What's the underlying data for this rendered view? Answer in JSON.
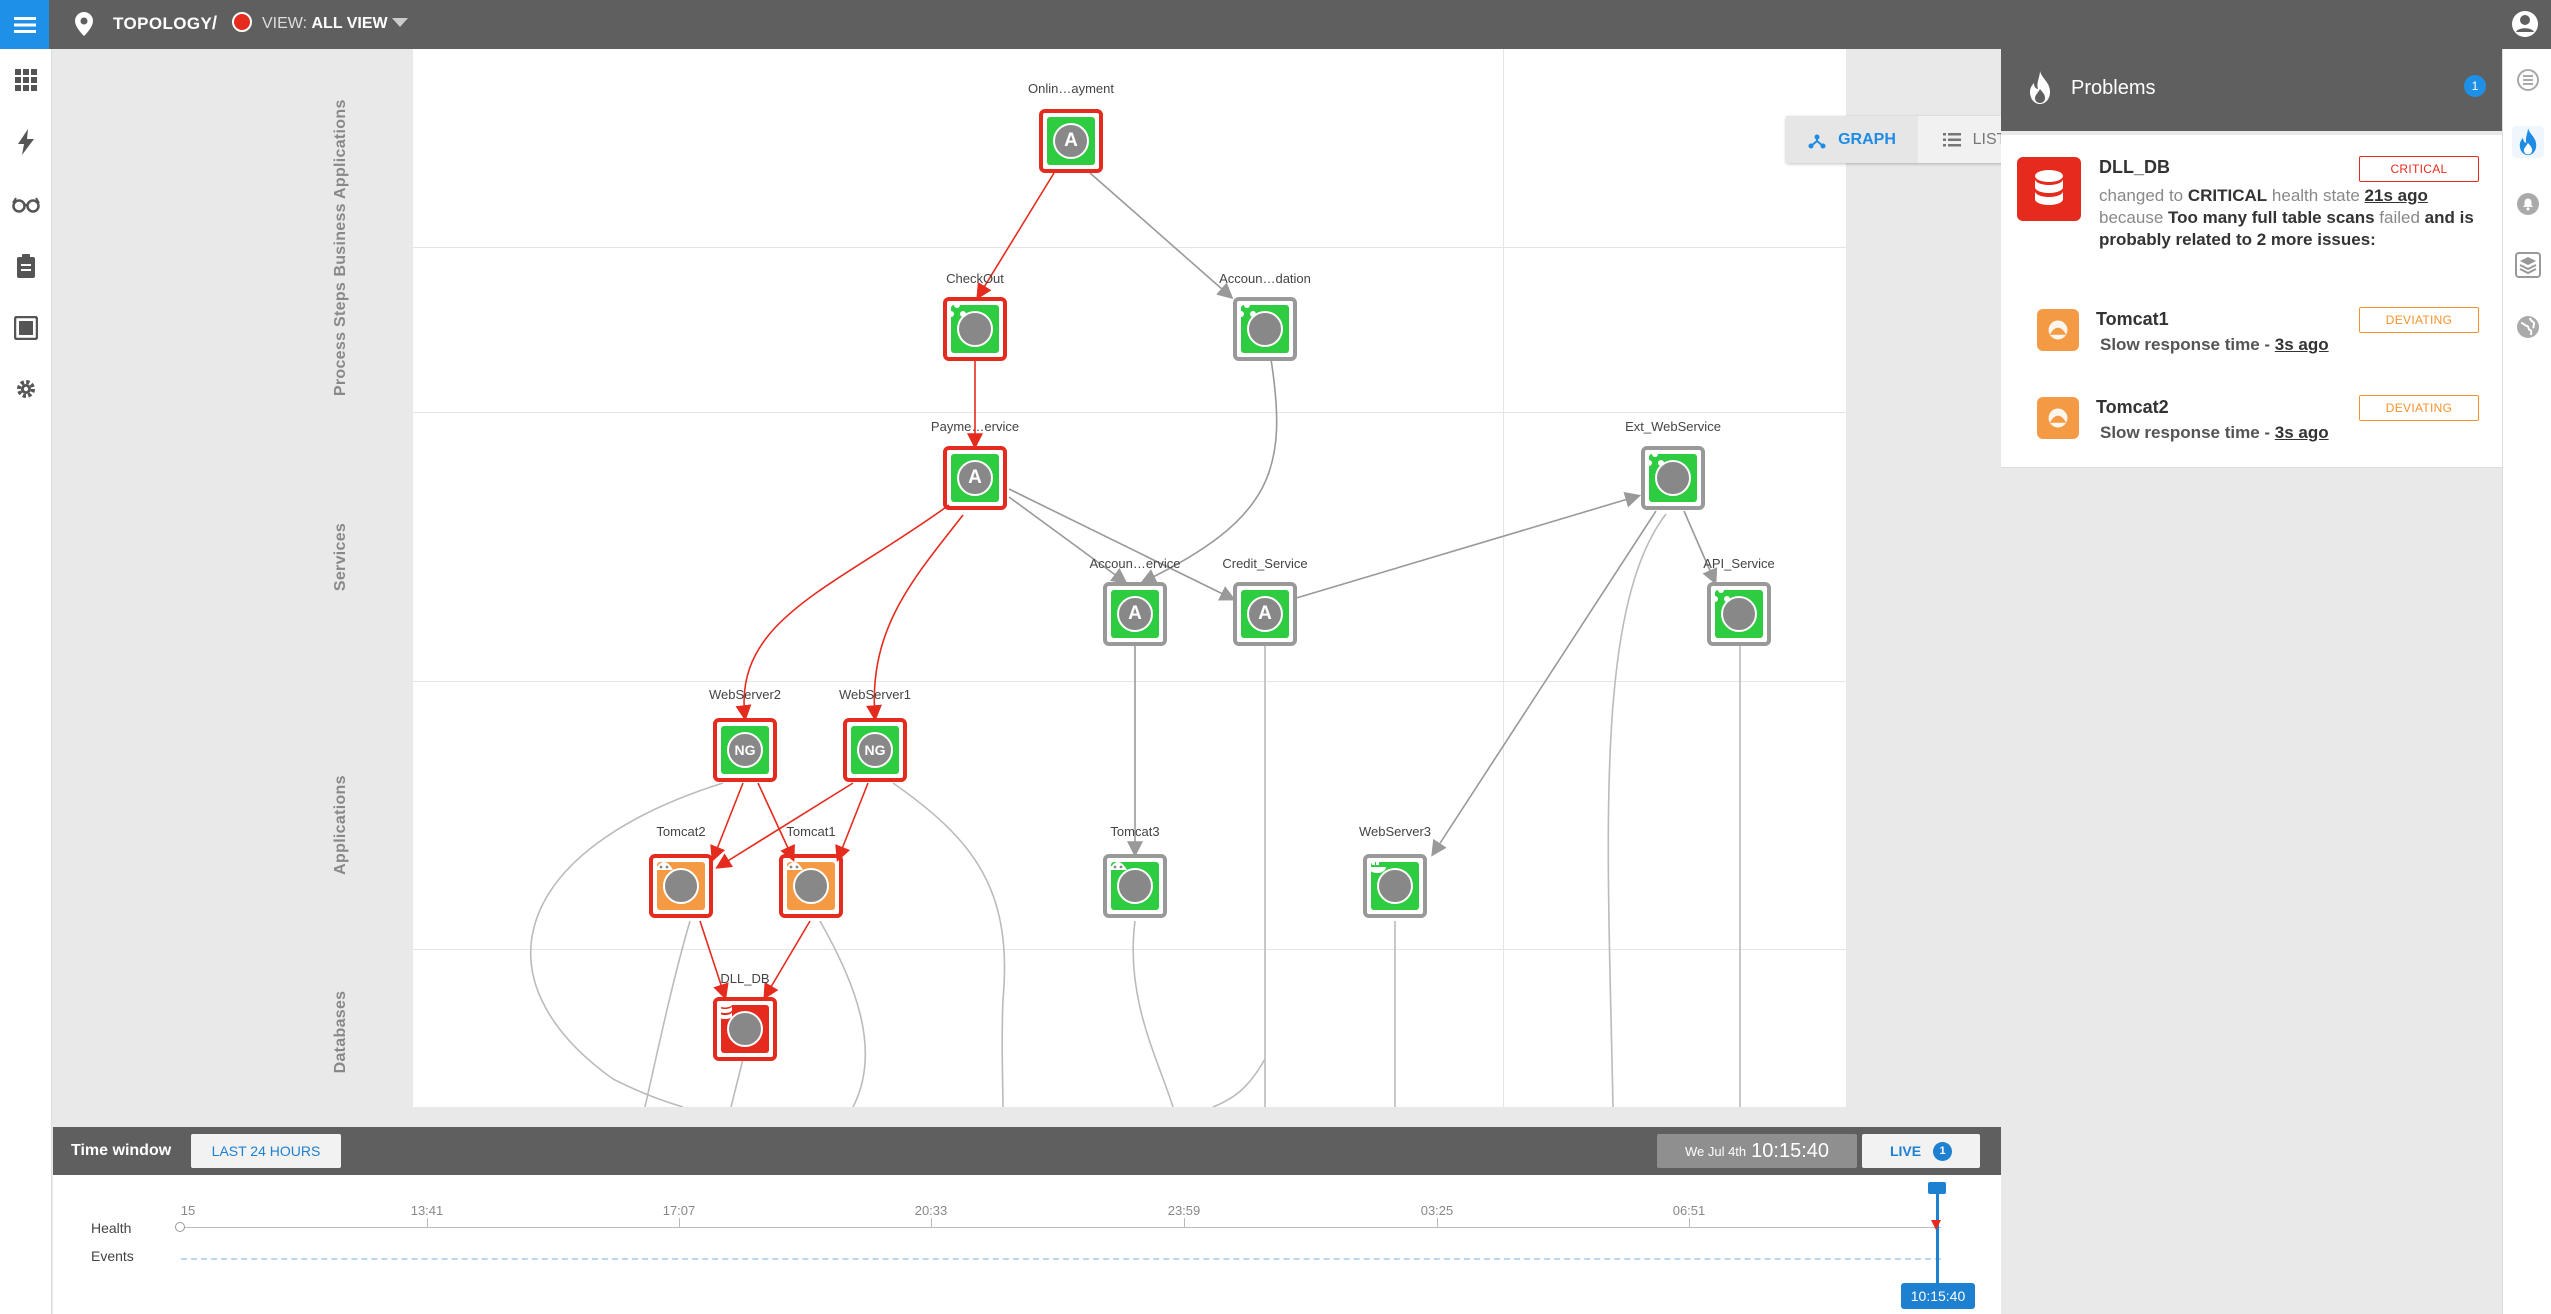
{
  "header": {
    "section": "TOPOLOGY",
    "separator": "/",
    "view_prefix": "VIEW:",
    "view_value": "ALL VIEW"
  },
  "layers": [
    "Business Applications",
    "Process Steps",
    "Services",
    "Applications",
    "Databases"
  ],
  "nodes": [
    {
      "id": "onlinepayment",
      "label": "Onlin…ayment",
      "status": "critical",
      "icon": "A"
    },
    {
      "id": "checkout",
      "label": "CheckOut",
      "status": "critical",
      "icon": "steps"
    },
    {
      "id": "accountvalidation",
      "label": "Accoun…dation",
      "status": "ok",
      "icon": "steps"
    },
    {
      "id": "paymentservice",
      "label": "Payme…ervice",
      "status": "critical",
      "icon": "A"
    },
    {
      "id": "accountservice",
      "label": "Accoun…ervice",
      "status": "ok",
      "icon": "A"
    },
    {
      "id": "creditservice",
      "label": "Credit_Service",
      "status": "ok",
      "icon": "A"
    },
    {
      "id": "extwebservice",
      "label": "Ext_WebService",
      "status": "ok",
      "icon": "steps"
    },
    {
      "id": "apiservice",
      "label": "API_Service",
      "status": "ok",
      "icon": "steps"
    },
    {
      "id": "webserver2",
      "label": "WebServer2",
      "status": "critical",
      "icon": "NG"
    },
    {
      "id": "webserver1",
      "label": "WebServer1",
      "status": "critical",
      "icon": "NG"
    },
    {
      "id": "tomcat2",
      "label": "Tomcat2",
      "status": "deviating",
      "icon": "tomcat"
    },
    {
      "id": "tomcat1",
      "label": "Tomcat1",
      "status": "deviating",
      "icon": "tomcat"
    },
    {
      "id": "tomcat3",
      "label": "Tomcat3",
      "status": "ok",
      "icon": "tomcat"
    },
    {
      "id": "webserver3",
      "label": "WebServer3",
      "status": "ok",
      "icon": "docker"
    },
    {
      "id": "dlldb",
      "label": "DLL_DB",
      "status": "critical",
      "icon": "db"
    }
  ],
  "view_toggle": {
    "graph": "GRAPH",
    "list": "LIST"
  },
  "zoom": {
    "in": "+",
    "fit": "⛶",
    "out": "-"
  },
  "time_window": {
    "label": "Time window",
    "range_button": "LAST 24 HOURS",
    "date": "We Jul 4th",
    "time": "10:15:40",
    "live": "LIVE",
    "live_count": "1"
  },
  "timeline": {
    "health_label": "Health",
    "events_label": "Events",
    "ticks": [
      "15",
      "13:41",
      "17:07",
      "20:33",
      "23:59",
      "03:25",
      "06:51"
    ],
    "cursor_time": "10:15:40"
  },
  "problems": {
    "title": "Problems",
    "count": "1",
    "main": {
      "name": "DLL_DB",
      "badge": "CRITICAL",
      "desc_1": "changed to ",
      "desc_state": "CRITICAL",
      "desc_2": " health state ",
      "desc_time": "21s ago",
      "desc_3": " because ",
      "desc_reason": "Too many full table scans",
      "desc_4": " failed ",
      "desc_5": "and is probably related to 2 more issues:"
    },
    "related": [
      {
        "name": "Tomcat1",
        "badge": "DEVIATING",
        "desc": "Slow response time - ",
        "time": "3s ago"
      },
      {
        "name": "Tomcat2",
        "badge": "DEVIATING",
        "desc": "Slow response time - ",
        "time": "3s ago"
      }
    ]
  },
  "colors": {
    "critical": "#e52b1d",
    "deviating": "#f5922e",
    "ok_fill": "#2ecc40",
    "accent": "#1e90e8",
    "bar": "#5f5f5f"
  }
}
